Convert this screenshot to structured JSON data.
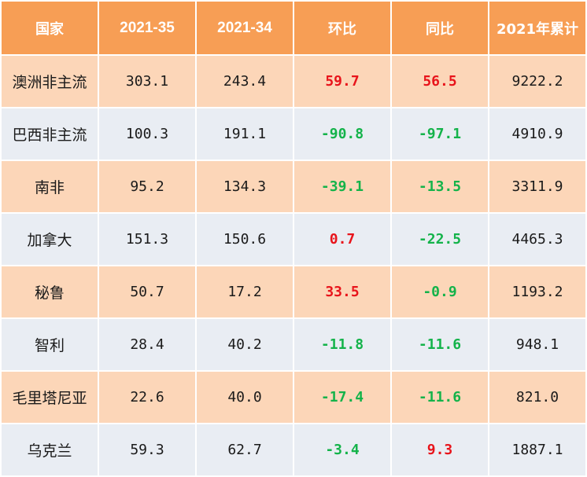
{
  "headers": [
    "国家",
    "2021-35",
    "2021-34",
    "环比",
    "同比",
    "2021年累计"
  ],
  "colors": {
    "header_bg": "#f79e55",
    "row_odd_bg": "#fcd6b8",
    "row_even_bg": "#e9edf3",
    "positive_text": "#e8141b",
    "negative_text": "#14b34a"
  },
  "rows": [
    {
      "country": "澳洲非主流",
      "w35": "303.1",
      "w34": "243.4",
      "wow": "59.7",
      "yoy": "56.5",
      "ytd": "9222.2"
    },
    {
      "country": "巴西非主流",
      "w35": "100.3",
      "w34": "191.1",
      "wow": "-90.8",
      "yoy": "-97.1",
      "ytd": "4910.9"
    },
    {
      "country": "南非",
      "w35": "95.2",
      "w34": "134.3",
      "wow": "-39.1",
      "yoy": "-13.5",
      "ytd": "3311.9"
    },
    {
      "country": "加拿大",
      "w35": "151.3",
      "w34": "150.6",
      "wow": "0.7",
      "yoy": "-22.5",
      "ytd": "4465.3"
    },
    {
      "country": "秘鲁",
      "w35": "50.7",
      "w34": "17.2",
      "wow": "33.5",
      "yoy": "-0.9",
      "ytd": "1193.2"
    },
    {
      "country": "智利",
      "w35": "28.4",
      "w34": "40.2",
      "wow": "-11.8",
      "yoy": "-11.6",
      "ytd": "948.1"
    },
    {
      "country": "毛里塔尼亚",
      "w35": "22.6",
      "w34": "40.0",
      "wow": "-17.4",
      "yoy": "-11.6",
      "ytd": "821.0"
    },
    {
      "country": "乌克兰",
      "w35": "59.3",
      "w34": "62.7",
      "wow": "-3.4",
      "yoy": "9.3",
      "ytd": "1887.1"
    }
  ]
}
